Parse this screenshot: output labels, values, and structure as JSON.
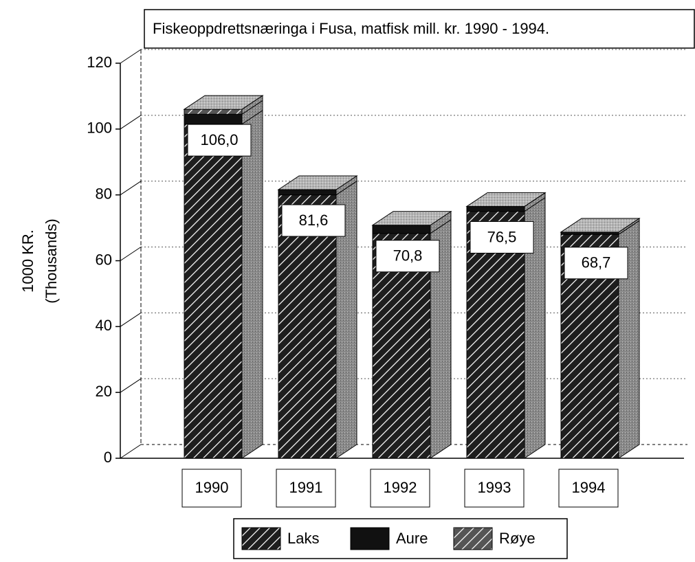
{
  "chart_data": {
    "type": "bar3d_stacked",
    "title": "Fiskeoppdrettsnæringa i Fusa, matfisk mill. kr.  1990 - 1994.",
    "y_label": [
      "1000 KR.",
      "(Thousands)"
    ],
    "categories": [
      "1990",
      "1991",
      "1992",
      "1993",
      "1994"
    ],
    "series": [
      {
        "name": "Laks",
        "color": "#1e1e1e",
        "hatch": true,
        "values": [
          101.5,
          80.0,
          68.3,
          75.0,
          68.0
        ]
      },
      {
        "name": "Aure",
        "color": "#111111",
        "hatch": false,
        "values": [
          3.0,
          1.6,
          2.5,
          1.5,
          0.7
        ]
      },
      {
        "name": "Røye",
        "color": "#555555",
        "hatch": true,
        "values": [
          1.5,
          0,
          0,
          0,
          0
        ]
      }
    ],
    "totals": {
      "values": [
        106.0,
        81.6,
        70.8,
        76.5,
        68.7
      ],
      "value_labels": [
        "106,0",
        "81,6",
        "70,8",
        "76,5",
        "68,7"
      ]
    },
    "ylim": [
      0,
      120
    ],
    "yticks": [
      0,
      20,
      40,
      60,
      80,
      100,
      120
    ],
    "grid": true
  }
}
